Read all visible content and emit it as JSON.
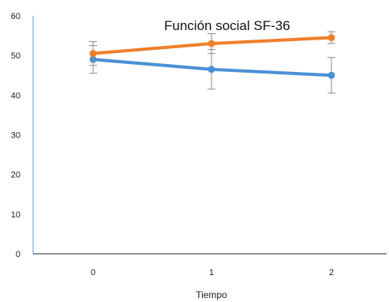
{
  "chart_data": {
    "type": "line",
    "title": "Función social SF-36",
    "xlabel": "Tiempo",
    "ylabel": "",
    "categories": [
      "0",
      "1",
      "2"
    ],
    "ylim": [
      0,
      60
    ],
    "yticks": [
      "0",
      "10",
      "20",
      "30",
      "40",
      "50",
      "60"
    ],
    "grid": false,
    "legend": "none",
    "series": [
      {
        "color": "#f07f2a",
        "values": [
          50.5,
          53.0,
          54.5
        ],
        "error": [
          3.0,
          2.5,
          1.5
        ]
      },
      {
        "color": "#4a90d6",
        "values": [
          49.0,
          46.5,
          45.0
        ],
        "error": [
          3.5,
          5.0,
          4.5
        ]
      }
    ]
  }
}
